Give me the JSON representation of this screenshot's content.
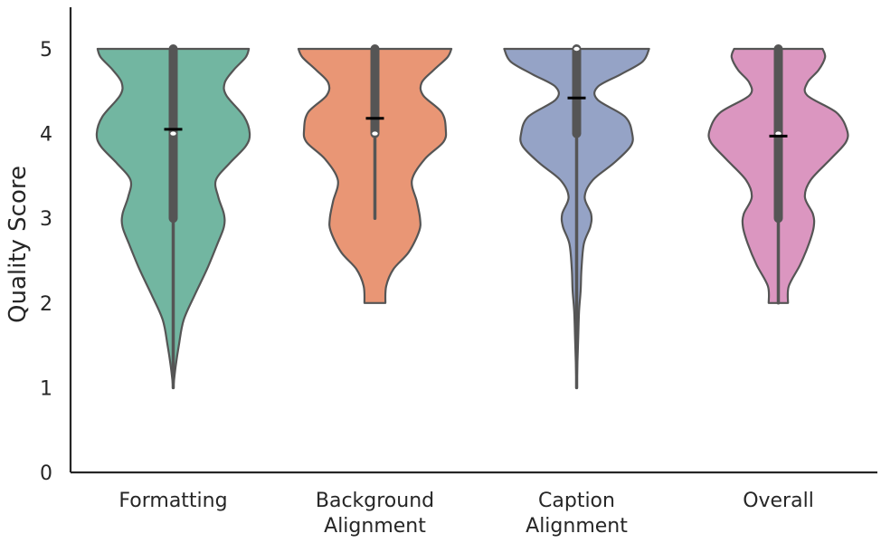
{
  "chart_data": {
    "type": "violin",
    "title": "",
    "xlabel": "",
    "ylabel": "Quality Score",
    "ylim": [
      0,
      5
    ],
    "yticks": [
      "0",
      "1",
      "2",
      "3",
      "4",
      "5"
    ],
    "grid": false,
    "categories": [
      {
        "label_lines": [
          "Formatting"
        ],
        "color": "#72b6a1"
      },
      {
        "label_lines": [
          "Background",
          "Alignment"
        ],
        "color": "#e99675"
      },
      {
        "label_lines": [
          "Caption",
          "Alignment"
        ],
        "color": "#95a3c6"
      },
      {
        "label_lines": [
          "Overall"
        ],
        "color": "#db96c0"
      }
    ],
    "series": [
      {
        "min": 1,
        "q1": 3,
        "median": 4,
        "q3": 5,
        "max": 5,
        "mean": 4.05,
        "density": [
          [
            1,
            0.0
          ],
          [
            1.25,
            0.03
          ],
          [
            1.5,
            0.07
          ],
          [
            1.8,
            0.13
          ],
          [
            2.1,
            0.27
          ],
          [
            2.4,
            0.42
          ],
          [
            2.7,
            0.55
          ],
          [
            2.9,
            0.63
          ],
          [
            3.05,
            0.63
          ],
          [
            3.25,
            0.56
          ],
          [
            3.45,
            0.53
          ],
          [
            3.65,
            0.7
          ],
          [
            3.85,
            0.9
          ],
          [
            4.0,
            0.95
          ],
          [
            4.2,
            0.88
          ],
          [
            4.45,
            0.66
          ],
          [
            4.6,
            0.64
          ],
          [
            4.75,
            0.75
          ],
          [
            4.9,
            0.9
          ],
          [
            5.0,
            0.94
          ]
        ]
      },
      {
        "min": 3,
        "q1": 4,
        "median": 4,
        "q3": 5,
        "max": 5,
        "mean": 4.18,
        "density": [
          [
            2.0,
            0.13
          ],
          [
            2.2,
            0.14
          ],
          [
            2.4,
            0.23
          ],
          [
            2.6,
            0.42
          ],
          [
            2.85,
            0.55
          ],
          [
            3.0,
            0.56
          ],
          [
            3.2,
            0.52
          ],
          [
            3.45,
            0.46
          ],
          [
            3.7,
            0.62
          ],
          [
            3.9,
            0.85
          ],
          [
            4.05,
            0.88
          ],
          [
            4.25,
            0.83
          ],
          [
            4.45,
            0.6
          ],
          [
            4.6,
            0.58
          ],
          [
            4.75,
            0.73
          ],
          [
            4.9,
            0.9
          ],
          [
            5.0,
            0.95
          ]
        ]
      },
      {
        "min": 1,
        "q1": 4,
        "median": 5,
        "q3": 5,
        "max": 5,
        "mean": 4.42,
        "density": [
          [
            1.0,
            0.0
          ],
          [
            1.3,
            0.01
          ],
          [
            1.6,
            0.02
          ],
          [
            1.9,
            0.03
          ],
          [
            2.15,
            0.05
          ],
          [
            2.4,
            0.06
          ],
          [
            2.7,
            0.09
          ],
          [
            2.9,
            0.17
          ],
          [
            3.05,
            0.18
          ],
          [
            3.25,
            0.1
          ],
          [
            3.45,
            0.2
          ],
          [
            3.65,
            0.46
          ],
          [
            3.85,
            0.67
          ],
          [
            4.0,
            0.69
          ],
          [
            4.2,
            0.6
          ],
          [
            4.4,
            0.26
          ],
          [
            4.55,
            0.26
          ],
          [
            4.7,
            0.55
          ],
          [
            4.85,
            0.82
          ],
          [
            5.0,
            0.9
          ]
        ]
      },
      {
        "min": 2,
        "q1": 3,
        "median": 4,
        "q3": 5,
        "max": 5,
        "mean": 3.97,
        "density": [
          [
            2.0,
            0.12
          ],
          [
            2.2,
            0.13
          ],
          [
            2.45,
            0.27
          ],
          [
            2.7,
            0.38
          ],
          [
            2.9,
            0.44
          ],
          [
            3.05,
            0.43
          ],
          [
            3.25,
            0.33
          ],
          [
            3.45,
            0.4
          ],
          [
            3.7,
            0.65
          ],
          [
            3.9,
            0.84
          ],
          [
            4.05,
            0.85
          ],
          [
            4.25,
            0.72
          ],
          [
            4.45,
            0.36
          ],
          [
            4.6,
            0.36
          ],
          [
            4.75,
            0.5
          ],
          [
            4.9,
            0.58
          ],
          [
            5.0,
            0.55
          ]
        ]
      }
    ]
  }
}
